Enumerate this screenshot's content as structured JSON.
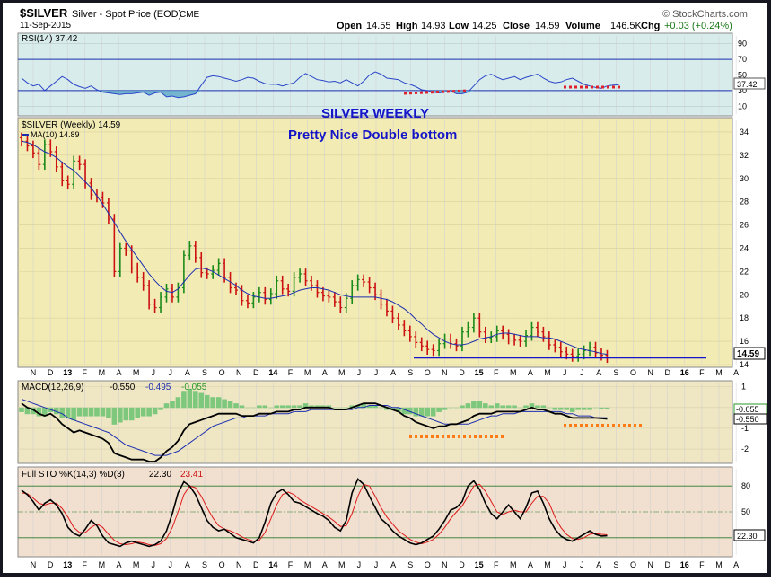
{
  "header": {
    "symbol": "$SILVER",
    "name": "Silver - Spot Price (EOD)",
    "exchange": "CME",
    "date": "11-Sep-2015",
    "watermark": "© StockCharts.com",
    "open_label": "Open",
    "open_value": "14.55",
    "high_label": "High",
    "high_value": "14.93",
    "low_label": "Low",
    "low_value": "14.25",
    "close_label": "Close",
    "close_value": "14.59",
    "volume_label": "Volume",
    "volume_value": "146.5K",
    "chg_label": "Chg",
    "chg_value": "+0.03 (+0.24%)",
    "chg_color": "#1a7a1a"
  },
  "annotations": {
    "title": "SILVER WEEKLY",
    "subtitle": "Pretty Nice Double bottom",
    "color": "#1414c8"
  },
  "colors": {
    "up_bar": "#1a8a1a",
    "down_bar": "#cc1111",
    "ma_line": "#1c2fb0",
    "price_bg": "#f3ebb4",
    "rsi_bg": "#d9ecec",
    "macd_bg": "#efe6c4",
    "sto_bg": "#f1dfcf",
    "frame": "#161620",
    "support_line": "#1414c8",
    "dashed_mark_red": "#e0202a",
    "dashed_mark_orange": "#ff7a14",
    "histogram": "#7ec87e"
  },
  "chart_data": [
    {
      "type": "line",
      "panel": "RSI",
      "title": "RSI(14) 37.42",
      "label": "RSI(14)",
      "last_value_label": "37.42",
      "ylim": [
        0,
        100
      ],
      "y_ticks": [
        "90",
        "70",
        "50",
        "30",
        "10"
      ],
      "levels": [
        70,
        30
      ],
      "series": [
        {
          "name": "RSI(14)",
          "values": [
            46,
            40,
            36,
            38,
            30,
            36,
            42,
            48,
            44,
            38,
            35,
            33,
            36,
            31,
            28,
            27,
            26,
            25,
            26,
            26,
            27,
            28,
            24,
            27,
            28,
            22,
            23,
            21,
            22,
            24,
            26,
            37,
            47,
            49,
            48,
            46,
            44,
            42,
            44,
            47,
            46,
            42,
            39,
            38,
            38,
            36,
            38,
            40,
            47,
            52,
            48,
            44,
            43,
            41,
            42,
            40,
            44,
            40,
            36,
            42,
            50,
            54,
            51,
            46,
            45,
            44,
            40,
            38,
            35,
            31,
            30,
            28,
            27,
            28,
            30,
            26,
            26,
            28,
            36,
            44,
            49,
            51,
            47,
            44,
            46,
            48,
            44,
            47,
            49,
            51,
            46,
            42,
            40,
            41,
            44,
            46,
            42,
            38,
            36,
            34,
            33,
            36,
            37,
            37.42
          ]
        }
      ]
    },
    {
      "type": "candlestick",
      "panel": "Price",
      "title": "$SILVER (Weekly) 14.59",
      "ma_label": "MA(10) 14.89",
      "last_price_label": "14.59",
      "ylim": [
        14,
        35
      ],
      "y_ticks": [
        "34",
        "32",
        "30",
        "28",
        "26",
        "24",
        "22",
        "20",
        "18",
        "16",
        "14"
      ],
      "x_tick_labels": [
        "N",
        "D",
        "13",
        "F",
        "M",
        "A",
        "M",
        "J",
        "J",
        "A",
        "S",
        "O",
        "N",
        "D",
        "14",
        "F",
        "M",
        "A",
        "M",
        "J",
        "J",
        "A",
        "S",
        "O",
        "N",
        "D",
        "15",
        "F",
        "M",
        "A",
        "M",
        "J",
        "J",
        "A",
        "S",
        "O",
        "N",
        "D",
        "16",
        "F",
        "M",
        "A"
      ],
      "support_level": 14.6,
      "close": [
        33.2,
        32.8,
        32.2,
        31.2,
        32.9,
        32.3,
        31.0,
        29.8,
        29.5,
        31.5,
        31.2,
        29.6,
        28.6,
        28.4,
        27.9,
        26.5,
        22.0,
        24.0,
        23.8,
        22.3,
        21.5,
        20.8,
        19.2,
        18.9,
        19.8,
        20.5,
        19.8,
        20.6,
        23.4,
        24.2,
        23.2,
        21.9,
        21.8,
        22.1,
        22.7,
        21.5,
        20.6,
        20.4,
        19.5,
        19.3,
        19.8,
        20.2,
        19.6,
        20.1,
        21.2,
        20.5,
        20.3,
        21.5,
        21.8,
        21.2,
        20.8,
        20.2,
        19.9,
        19.8,
        19.4,
        18.9,
        19.7,
        20.8,
        21.3,
        21.1,
        20.6,
        20.0,
        19.2,
        18.6,
        18.0,
        17.4,
        16.9,
        16.4,
        15.9,
        15.6,
        15.3,
        15.2,
        15.8,
        16.2,
        15.8,
        15.6,
        16.8,
        17.2,
        18.0,
        16.8,
        16.3,
        16.4,
        16.9,
        16.6,
        16.2,
        16.1,
        16.0,
        16.5,
        17.2,
        16.8,
        16.4,
        15.7,
        15.5,
        15.1,
        14.9,
        14.7,
        14.9,
        15.2,
        15.5,
        15.0,
        14.8,
        14.6
      ],
      "ma10": [
        33.2,
        33.1,
        32.9,
        32.6,
        32.3,
        32.1,
        31.8,
        31.4,
        31.0,
        30.7,
        30.2,
        29.7,
        29.2,
        28.5,
        27.8,
        27.0,
        26.2,
        25.4,
        24.6,
        23.9,
        23.2,
        22.5,
        21.8,
        21.2,
        20.7,
        20.3,
        20.2,
        20.5,
        21.1,
        21.7,
        22.2,
        22.3,
        22.2,
        22.0,
        21.7,
        21.4,
        21.1,
        20.8,
        20.4,
        20.1,
        19.9,
        19.8,
        19.7,
        19.7,
        19.8,
        19.9,
        20.0,
        20.2,
        20.4,
        20.5,
        20.6,
        20.6,
        20.5,
        20.4,
        20.2,
        20.0,
        19.9,
        19.8,
        19.8,
        19.8,
        19.8,
        19.8,
        19.7,
        19.6,
        19.4,
        19.1,
        18.8,
        18.4,
        17.9,
        17.5,
        17.0,
        16.6,
        16.3,
        16.0,
        15.8,
        15.7,
        15.7,
        15.8,
        16.0,
        16.2,
        16.3,
        16.4,
        16.6,
        16.7,
        16.7,
        16.6,
        16.5,
        16.4,
        16.4,
        16.4,
        16.3,
        16.3,
        16.2,
        16.0,
        15.8,
        15.6,
        15.4,
        15.3,
        15.2,
        15.1,
        14.95,
        14.89
      ]
    },
    {
      "type": "line",
      "panel": "MACD",
      "title": "MACD(12,26,9) -0.550, -0.495, -0.055",
      "label": "MACD(12,26,9)",
      "value_labels": [
        "-0.550",
        "-0.495",
        "-0.055"
      ],
      "value_colors": [
        "#000000",
        "#1c2fb0",
        "#2a9a2a"
      ],
      "ylim": [
        -2.6,
        1.2
      ],
      "y_ticks": [
        "1",
        "0",
        "-1",
        "-2"
      ],
      "right_labels": [
        "-0.055",
        "-0.550"
      ],
      "series": [
        {
          "name": "MACD",
          "values": [
            0.2,
            0.0,
            -0.1,
            -0.3,
            -0.4,
            -0.3,
            -0.5,
            -0.8,
            -1.0,
            -1.2,
            -1.1,
            -1.2,
            -1.3,
            -1.4,
            -1.5,
            -1.7,
            -2.2,
            -2.3,
            -2.4,
            -2.5,
            -2.5,
            -2.5,
            -2.6,
            -2.6,
            -2.4,
            -2.1,
            -1.9,
            -1.6,
            -1.1,
            -0.8,
            -0.7,
            -0.6,
            -0.5,
            -0.4,
            -0.3,
            -0.3,
            -0.3,
            -0.3,
            -0.4,
            -0.4,
            -0.4,
            -0.3,
            -0.3,
            -0.3,
            -0.2,
            -0.2,
            -0.2,
            -0.1,
            -0.1,
            0.0,
            0.0,
            0.0,
            0.0,
            0.0,
            -0.1,
            -0.1,
            -0.1,
            0.0,
            0.1,
            0.2,
            0.2,
            0.2,
            0.1,
            0.0,
            -0.1,
            -0.2,
            -0.4,
            -0.5,
            -0.7,
            -0.8,
            -0.9,
            -1.0,
            -0.9,
            -0.9,
            -0.8,
            -0.8,
            -0.7,
            -0.6,
            -0.4,
            -0.3,
            -0.3,
            -0.3,
            -0.2,
            -0.2,
            -0.2,
            -0.2,
            -0.2,
            -0.1,
            0.0,
            -0.1,
            -0.1,
            -0.2,
            -0.3,
            -0.3,
            -0.4,
            -0.5,
            -0.5,
            -0.5,
            -0.5,
            -0.5,
            -0.52,
            -0.55
          ]
        },
        {
          "name": "Signal",
          "values": [
            0.4,
            0.3,
            0.2,
            0.1,
            0.0,
            -0.1,
            -0.2,
            -0.3,
            -0.5,
            -0.6,
            -0.7,
            -0.8,
            -0.9,
            -1.0,
            -1.1,
            -1.2,
            -1.4,
            -1.6,
            -1.8,
            -1.9,
            -2.0,
            -2.1,
            -2.2,
            -2.3,
            -2.3,
            -2.3,
            -2.2,
            -2.1,
            -1.9,
            -1.7,
            -1.5,
            -1.3,
            -1.1,
            -0.9,
            -0.8,
            -0.7,
            -0.6,
            -0.5,
            -0.5,
            -0.4,
            -0.4,
            -0.4,
            -0.4,
            -0.3,
            -0.3,
            -0.3,
            -0.3,
            -0.2,
            -0.2,
            -0.2,
            -0.1,
            -0.1,
            -0.1,
            -0.1,
            -0.1,
            -0.1,
            -0.1,
            -0.1,
            0.0,
            0.0,
            0.1,
            0.1,
            0.1,
            0.1,
            0.0,
            0.0,
            -0.1,
            -0.2,
            -0.3,
            -0.4,
            -0.5,
            -0.6,
            -0.7,
            -0.8,
            -0.8,
            -0.8,
            -0.8,
            -0.8,
            -0.7,
            -0.6,
            -0.5,
            -0.4,
            -0.4,
            -0.3,
            -0.3,
            -0.3,
            -0.2,
            -0.2,
            -0.2,
            -0.2,
            -0.2,
            -0.2,
            -0.2,
            -0.2,
            -0.3,
            -0.3,
            -0.4,
            -0.4,
            -0.4,
            -0.5,
            -0.49,
            -0.495
          ]
        }
      ]
    },
    {
      "type": "line",
      "panel": "STO",
      "title": "Full STO %K(14,3) %D(3) 22.30, 23.41",
      "label": "Full STO %K(14,3) %D(3)",
      "value_labels": [
        "22.30",
        "23.41"
      ],
      "value_colors": [
        "#000000",
        "#cc1111"
      ],
      "ylim": [
        0,
        100
      ],
      "y_ticks": [
        "80",
        "50",
        "20"
      ],
      "levels": [
        80,
        20
      ],
      "right_label": "22.30",
      "series": [
        {
          "name": "%K",
          "values": [
            75,
            70,
            62,
            52,
            60,
            64,
            58,
            48,
            32,
            25,
            22,
            30,
            40,
            34,
            22,
            14,
            12,
            10,
            14,
            16,
            14,
            12,
            10,
            12,
            16,
            28,
            48,
            72,
            85,
            80,
            70,
            55,
            40,
            32,
            28,
            30,
            25,
            20,
            18,
            16,
            14,
            20,
            38,
            60,
            72,
            76,
            70,
            62,
            60,
            56,
            52,
            48,
            45,
            40,
            32,
            28,
            40,
            72,
            88,
            82,
            68,
            55,
            42,
            36,
            28,
            22,
            18,
            14,
            12,
            14,
            18,
            22,
            30,
            40,
            52,
            55,
            62,
            80,
            86,
            76,
            60,
            48,
            42,
            50,
            58,
            50,
            42,
            55,
            72,
            74,
            60,
            42,
            30,
            22,
            18,
            16,
            20,
            24,
            28,
            24,
            22,
            22.3
          ]
        },
        {
          "name": "%D",
          "values": [
            72,
            71,
            66,
            60,
            58,
            60,
            60,
            54,
            44,
            32,
            26,
            26,
            32,
            36,
            32,
            24,
            17,
            13,
            12,
            13,
            15,
            14,
            12,
            11,
            13,
            19,
            32,
            50,
            70,
            80,
            78,
            68,
            55,
            43,
            34,
            30,
            28,
            25,
            21,
            18,
            16,
            17,
            26,
            42,
            58,
            70,
            73,
            70,
            64,
            60,
            56,
            52,
            48,
            44,
            39,
            33,
            34,
            48,
            68,
            82,
            80,
            68,
            55,
            44,
            36,
            28,
            23,
            18,
            15,
            13,
            15,
            18,
            24,
            32,
            42,
            50,
            57,
            68,
            80,
            82,
            74,
            62,
            50,
            47,
            50,
            52,
            50,
            50,
            60,
            68,
            68,
            60,
            44,
            32,
            24,
            19,
            18,
            20,
            24,
            25,
            24,
            23.41
          ]
        }
      ]
    }
  ]
}
